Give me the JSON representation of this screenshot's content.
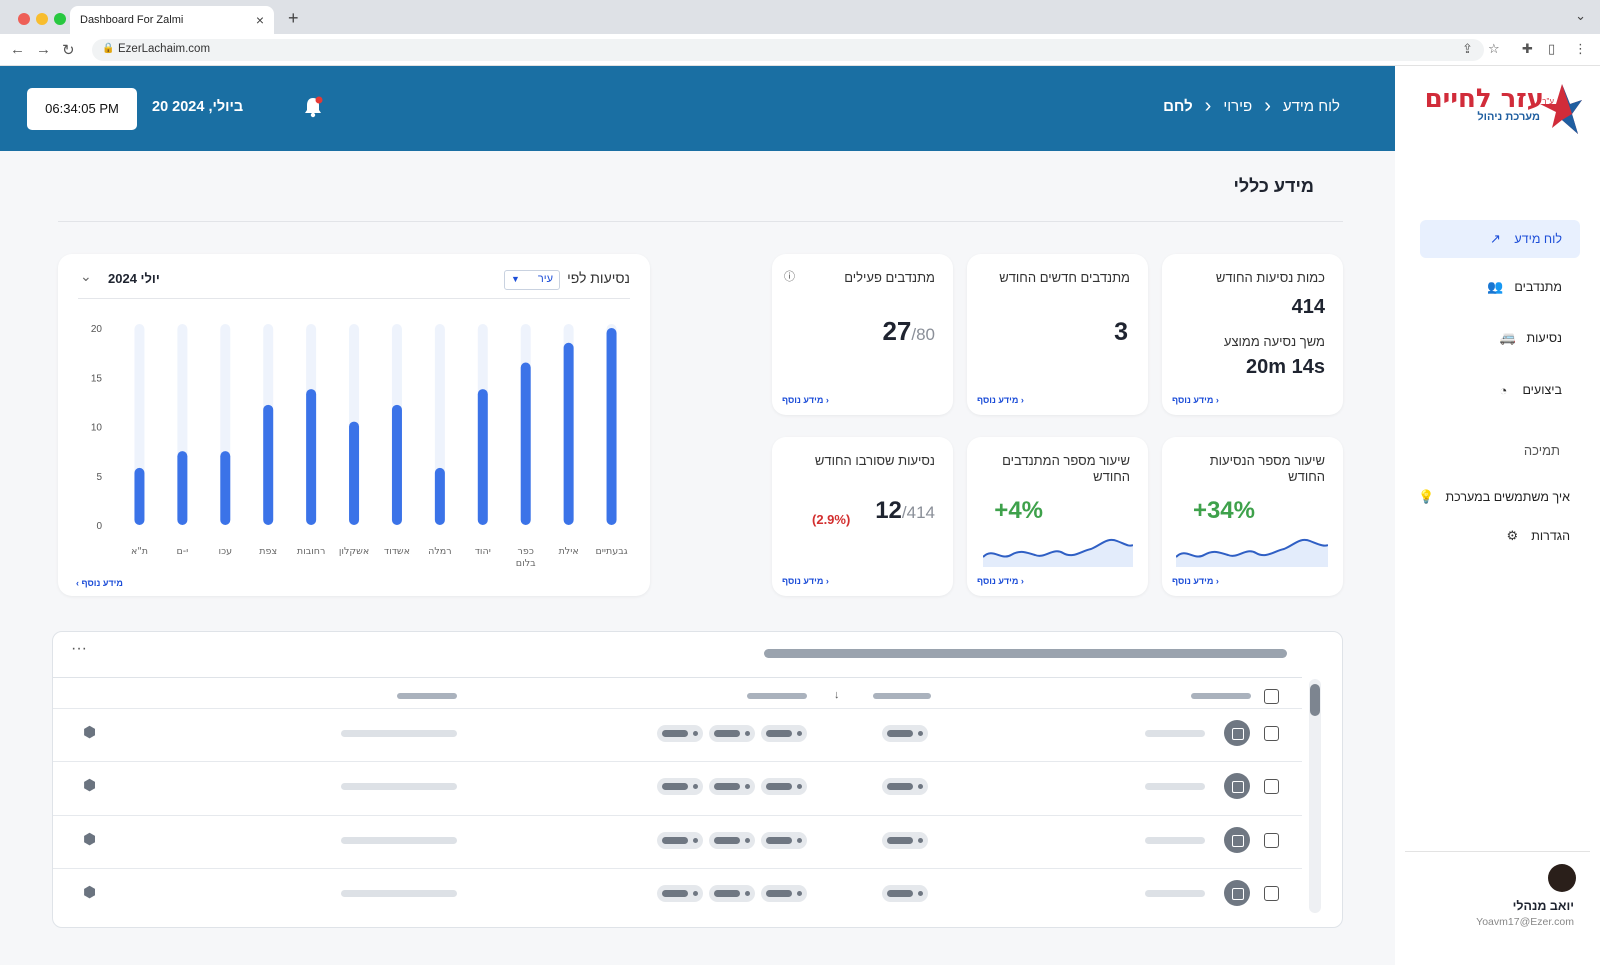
{
  "browser": {
    "tab_title": "Dashboard For Zalmi",
    "url": "EzerLachaim.com"
  },
  "header": {
    "time": "06:34:05 PM",
    "date": "20 ביולי, 2024",
    "breadcrumbs": [
      "לוח מידע",
      "פירוי",
      "לחם"
    ]
  },
  "sidebar": {
    "logo": {
      "name": "עזר לחיים",
      "tagline": "מערכת ניהול",
      "mark": "ע\"ר"
    },
    "items": [
      {
        "label": "לוח מידע",
        "icon": "trend-icon"
      },
      {
        "label": "מתנדבים",
        "icon": "users-icon"
      },
      {
        "label": "נסיעות",
        "icon": "van-icon"
      },
      {
        "label": "ביצועים",
        "icon": "gauge-icon"
      }
    ],
    "support_heading": "תמיכה",
    "support_items": [
      {
        "label": "איך משתמשים במערכת",
        "icon": "bulb-icon"
      },
      {
        "label": "הגדרות",
        "icon": "gear-icon"
      }
    ],
    "user": {
      "name": "יואב מנהלי",
      "email": "Yoavm17@Ezer.com"
    }
  },
  "page": {
    "title": "מידע כללי"
  },
  "cards": {
    "more_label": "מידע נוסף",
    "monthly_rides": {
      "title": "כמות נסיעות החודש",
      "value": "414",
      "sub_title": "משך נסיעה ממוצע",
      "sub_value": "20m 14s"
    },
    "new_volunteers": {
      "title": "מתנדבים חדשים החודש",
      "value": "3"
    },
    "active_volunteers": {
      "title": "מתנדבים פעילים",
      "value": "27",
      "total": "/80"
    },
    "rides_growth": {
      "title": "שיעור מספר הנסיעות החודש",
      "value": "+34%"
    },
    "volunteers_growth": {
      "title": "שיעור מספר המתנדבים החודש",
      "value": "+4%"
    },
    "declined_rides": {
      "title": "נסיעות שסורבו החודש",
      "value": "12",
      "total": "/414",
      "pct": "(2.9%)"
    }
  },
  "chart": {
    "title": "נסיעות לפי",
    "filter": "עיר",
    "month": "יולי 2024"
  },
  "chart_data": {
    "type": "bar",
    "title": "נסיעות לפי עיר",
    "categories": [
      "גבעתיים",
      "אילת",
      "כפר בלום",
      "יהוד",
      "רמלה",
      "אשדוד",
      "אשקלון",
      "רחובות",
      "צפת",
      "עכו",
      "י-ם",
      "ת\"א"
    ],
    "values": [
      20,
      18.5,
      16.5,
      13.8,
      5.8,
      12.2,
      10.5,
      13.8,
      12.2,
      7.5,
      7.5,
      5.8
    ],
    "ylim": [
      0,
      20
    ],
    "yticks": [
      0,
      5,
      10,
      15,
      20
    ],
    "xlabel": "",
    "ylabel": ""
  },
  "table": {
    "rows": 4
  }
}
